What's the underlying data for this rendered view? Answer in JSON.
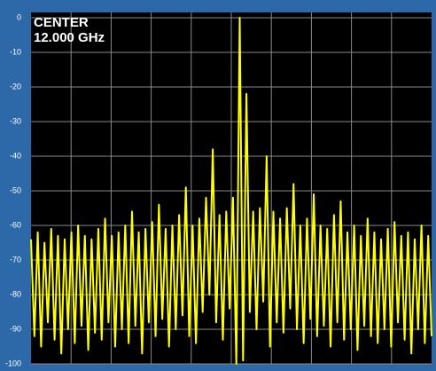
{
  "chart_data": {
    "type": "line",
    "annotations": [
      "CENTER",
      "12.000 GHz"
    ],
    "values": [
      -64,
      -92,
      -62,
      -95,
      -65,
      -88,
      -61,
      -93,
      -63,
      -97,
      -64,
      -90,
      -62,
      -94,
      -60,
      -89,
      -63,
      -96,
      -64,
      -91,
      -61,
      -93,
      -58,
      -88,
      -63,
      -95,
      -62,
      -90,
      -60,
      -94,
      -56,
      -89,
      -62,
      -97,
      -61,
      -88,
      -59,
      -92,
      -54,
      -87,
      -61,
      -95,
      -60,
      -90,
      -57,
      -86,
      -49,
      -92,
      -60,
      -94,
      -58,
      -85,
      -52,
      -80,
      -38,
      -88,
      -57,
      -93,
      -56,
      -84,
      -52,
      -100,
      0,
      -99,
      -22,
      -85,
      -56,
      -90,
      -55,
      -82,
      -40,
      -95,
      -56,
      -88,
      -58,
      -91,
      -55,
      -84,
      -48,
      -90,
      -60,
      -94,
      -58,
      -87,
      -51,
      -92,
      -60,
      -89,
      -61,
      -95,
      -57,
      -88,
      -53,
      -93,
      -62,
      -90,
      -60,
      -96,
      -63,
      -89,
      -58,
      -92,
      -62,
      -94,
      -64,
      -90,
      -61,
      -95,
      -59,
      -88,
      -63,
      -93,
      -62,
      -97,
      -64,
      -90,
      -60,
      -94,
      -63,
      -92
    ],
    "color": "#ffff00",
    "ylim": [
      -100,
      0
    ],
    "yticks": [
      0,
      -10,
      -20,
      -30,
      -40,
      -50,
      -60,
      -70,
      -80,
      -90,
      -100
    ],
    "grid": true
  }
}
